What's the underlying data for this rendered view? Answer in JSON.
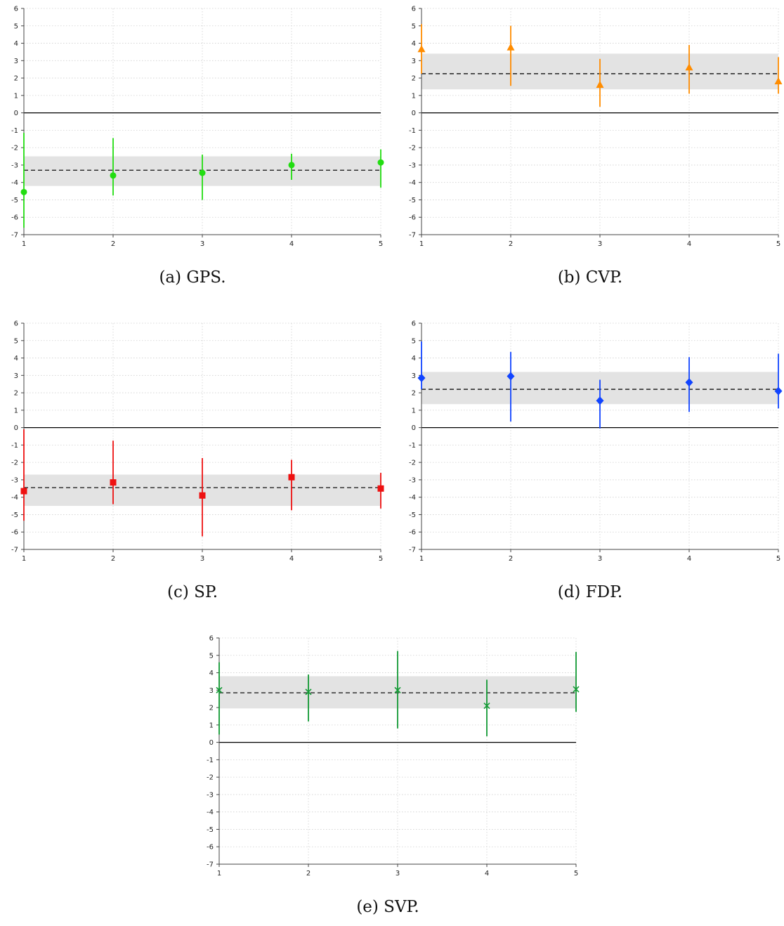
{
  "chart_data": [
    {
      "type": "scatter",
      "caption": "(a) GPS.",
      "color": "#22dd11",
      "marker": "circle",
      "x": [
        1,
        2,
        3,
        4,
        5
      ],
      "values": [
        -4.55,
        -3.6,
        -3.45,
        -3.0,
        -2.85
      ],
      "lower": [
        -6.6,
        -4.75,
        -5.0,
        -3.85,
        -4.3
      ],
      "upper": [
        -1.15,
        -1.45,
        -2.4,
        -2.35,
        -2.1
      ],
      "mean": -3.3,
      "band": [
        -4.2,
        -2.5
      ],
      "xticks": [
        "1",
        "2",
        "3",
        "4",
        "5"
      ],
      "yticks": [
        "6",
        "5",
        "4",
        "3",
        "2",
        "1",
        "0",
        "-1",
        "-2",
        "-3",
        "-4",
        "-5",
        "-6",
        "-7"
      ],
      "ylim": [
        -7,
        6
      ],
      "grid": true
    },
    {
      "type": "scatter",
      "caption": "(b) CVP.",
      "color": "#ff8c00",
      "marker": "triangle",
      "x": [
        1,
        2,
        3,
        4,
        5
      ],
      "values": [
        3.65,
        3.75,
        1.6,
        2.6,
        1.8
      ],
      "lower": [
        2.25,
        1.55,
        0.35,
        1.1,
        1.1
      ],
      "upper": [
        5.1,
        5.0,
        3.1,
        3.9,
        3.2
      ],
      "mean": 2.25,
      "band": [
        1.35,
        3.4
      ],
      "xticks": [
        "1",
        "2",
        "3",
        "4",
        "5"
      ],
      "yticks": [
        "6",
        "5",
        "4",
        "3",
        "2",
        "1",
        "0",
        "-1",
        "-2",
        "-3",
        "-4",
        "-5",
        "-6",
        "-7"
      ],
      "ylim": [
        -7,
        6
      ],
      "grid": true
    },
    {
      "type": "scatter",
      "caption": "(c) SP.",
      "color": "#ee1111",
      "marker": "square",
      "x": [
        1,
        2,
        3,
        4,
        5
      ],
      "values": [
        -3.65,
        -3.15,
        -3.9,
        -2.85,
        -3.5
      ],
      "lower": [
        -5.35,
        -4.4,
        -6.25,
        -4.75,
        -4.65
      ],
      "upper": [
        -0.1,
        -0.75,
        -1.75,
        -1.85,
        -2.6
      ],
      "mean": -3.45,
      "band": [
        -4.5,
        -2.7
      ],
      "xticks": [
        "1",
        "2",
        "3",
        "4",
        "5"
      ],
      "yticks": [
        "6",
        "5",
        "4",
        "3",
        "2",
        "1",
        "0",
        "-1",
        "-2",
        "-3",
        "-4",
        "-5",
        "-6",
        "-7"
      ],
      "ylim": [
        -7,
        6
      ],
      "grid": true
    },
    {
      "type": "scatter",
      "caption": "(d) FDP.",
      "color": "#1144ff",
      "marker": "diamond",
      "x": [
        1,
        2,
        3,
        4,
        5
      ],
      "values": [
        2.85,
        2.95,
        1.55,
        2.6,
        2.1
      ],
      "lower": [
        2.2,
        0.35,
        -0.05,
        0.9,
        1.1
      ],
      "upper": [
        4.95,
        4.35,
        2.75,
        4.05,
        4.25
      ],
      "mean": 2.2,
      "band": [
        1.35,
        3.2
      ],
      "xticks": [
        "1",
        "2",
        "3",
        "4",
        "5"
      ],
      "yticks": [
        "6",
        "5",
        "4",
        "3",
        "2",
        "1",
        "0",
        "-1",
        "-2",
        "-3",
        "-4",
        "-5",
        "-6",
        "-7"
      ],
      "ylim": [
        -7,
        6
      ],
      "grid": true
    },
    {
      "type": "scatter",
      "caption": "(e) SVP.",
      "color": "#119933",
      "marker": "x",
      "x": [
        1,
        2,
        3,
        4,
        5
      ],
      "values": [
        3.0,
        2.9,
        3.0,
        2.1,
        3.05
      ],
      "lower": [
        0.45,
        1.2,
        0.8,
        0.35,
        1.75
      ],
      "upper": [
        4.6,
        3.9,
        5.25,
        3.6,
        5.2
      ],
      "mean": 2.85,
      "band": [
        1.95,
        3.8
      ],
      "xticks": [
        "1",
        "2",
        "3",
        "4",
        "5"
      ],
      "yticks": [
        "6",
        "5",
        "4",
        "3",
        "2",
        "1",
        "0",
        "-1",
        "-2",
        "-3",
        "-4",
        "-5",
        "-6",
        "-7"
      ],
      "ylim": [
        -7,
        6
      ],
      "grid": true
    }
  ]
}
